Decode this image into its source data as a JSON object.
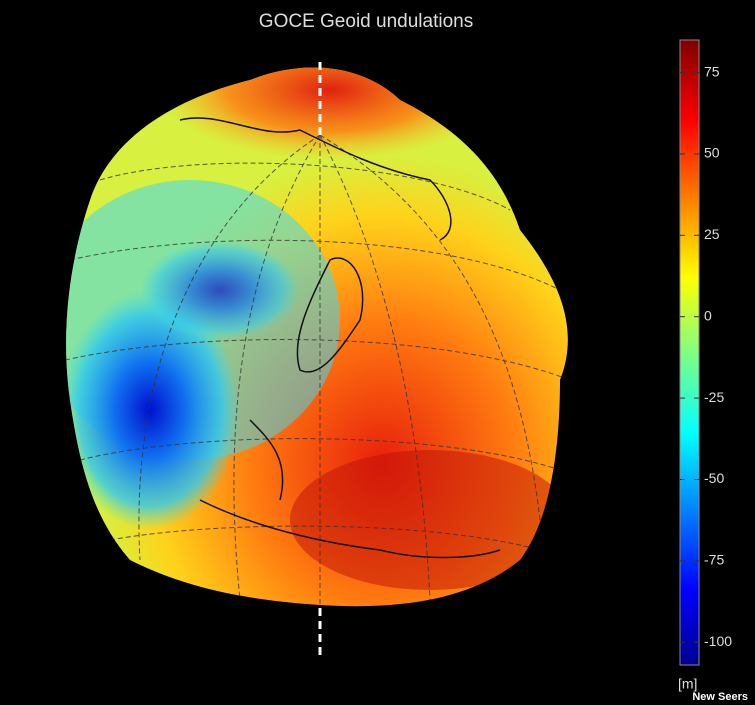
{
  "title": "GOCE Geoid undulations",
  "colorbar": {
    "range": [
      -107,
      85
    ],
    "ticks": [
      75,
      50,
      25,
      0,
      -25,
      -50,
      -75,
      -100
    ],
    "unit": "[m]"
  },
  "watermark": "New Seers"
}
